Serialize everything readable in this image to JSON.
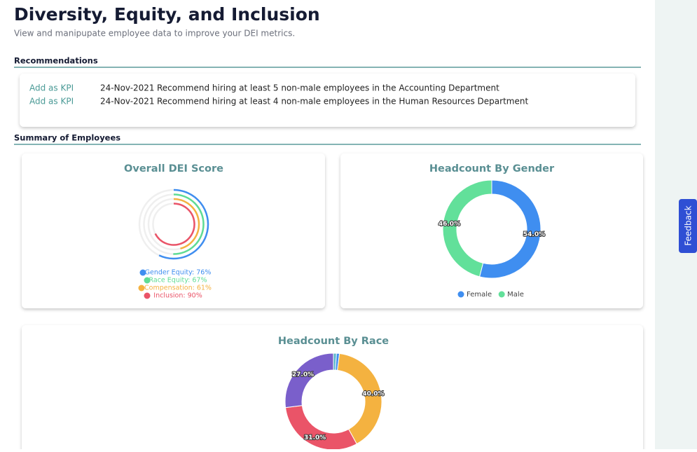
{
  "header": {
    "title": "Diversity, Equity, and Inclusion",
    "subtitle": "View and manipupate employee data to improve your DEI metrics."
  },
  "recommendations": {
    "title": "Recommendations",
    "rows": [
      {
        "action": "Add as KPI",
        "date": "24-Nov-2021",
        "text": "Recommend hiring at least 5 non-male employees in the Accounting Department"
      },
      {
        "action": "Add as KPI",
        "date": "24-Nov-2021",
        "text": "Recommend hiring at least 4 non-male employees in the Human Resources Department"
      }
    ]
  },
  "summary": {
    "title": "Summary of Employees"
  },
  "feedback": "Feedback",
  "chart_data": [
    {
      "type": "radial_bar",
      "title": "Overall DEI Score",
      "labels": [
        "Gender Equity: 76%",
        "Race Equity: 67%",
        "Compensation: 61%",
        "Inclusion: 90%"
      ],
      "values": [
        76,
        67,
        61,
        90
      ],
      "colors": [
        "#3f8ef0",
        "#5fdc95",
        "#f4b240",
        "#ea5468"
      ]
    },
    {
      "type": "doughnut",
      "title": "Headcount By Gender",
      "categories": [
        "Female",
        "Male"
      ],
      "values": [
        54.0,
        46.0
      ],
      "value_labels": [
        "54.0%",
        "46.0%"
      ],
      "colors": [
        "#3f8ef0",
        "#62e09a"
      ],
      "legend": true
    },
    {
      "type": "doughnut",
      "title": "Headcount By Race",
      "categories": [
        null,
        null,
        null,
        null,
        null
      ],
      "values": [
        1,
        1,
        40.0,
        31.0,
        27.0
      ],
      "value_labels": [
        null,
        null,
        "40.0%",
        "31.0%",
        "27.0%"
      ],
      "colors": [
        "#5ab8c8",
        "#3f8ef0",
        "#f4b240",
        "#ea5468",
        "#7a5fcb"
      ],
      "legend": false
    }
  ]
}
